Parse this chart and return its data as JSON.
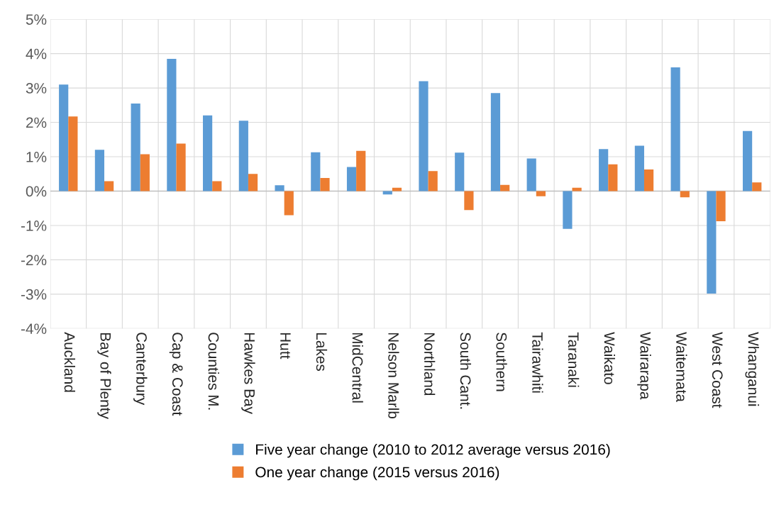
{
  "chart_data": {
    "type": "bar",
    "categories": [
      "Auckland",
      "Bay of Plenty",
      "Canterbury",
      "Cap & Coast",
      "Counties M.",
      "Hawkes Bay",
      "Hutt",
      "Lakes",
      "MidCentral",
      "Nelson Marlb",
      "Northland",
      "South Cant.",
      "Southern",
      "Tairawhiti",
      "Taranaki",
      "Waikato",
      "Wairarapa",
      "Waitemata",
      "West Coast",
      "Whanganui"
    ],
    "series": [
      {
        "name": "Five year change (2010 to 2012 average versus 2016)",
        "color": "#5b9bd5",
        "values": [
          3.1,
          1.2,
          2.55,
          3.85,
          2.2,
          2.05,
          0.17,
          1.13,
          0.7,
          -0.1,
          3.2,
          1.12,
          2.85,
          0.95,
          -1.1,
          1.22,
          1.32,
          3.6,
          -2.98,
          1.75
        ]
      },
      {
        "name": "One year change (2015 versus 2016)",
        "color": "#ed7d31",
        "values": [
          2.17,
          0.29,
          1.07,
          1.38,
          0.29,
          0.5,
          -0.7,
          0.38,
          1.17,
          0.1,
          0.58,
          -0.55,
          0.18,
          -0.15,
          0.1,
          0.78,
          0.63,
          -0.18,
          -0.88,
          0.25
        ]
      }
    ],
    "ylim": [
      -4,
      5
    ],
    "yticks": [
      {
        "value": -4,
        "label": "-4%"
      },
      {
        "value": -3,
        "label": "-3%"
      },
      {
        "value": -2,
        "label": "-2%"
      },
      {
        "value": -1,
        "label": "-1%"
      },
      {
        "value": 0,
        "label": "0%"
      },
      {
        "value": 1,
        "label": "1%"
      },
      {
        "value": 2,
        "label": "2%"
      },
      {
        "value": 3,
        "label": "3%"
      },
      {
        "value": 4,
        "label": "4%"
      },
      {
        "value": 5,
        "label": "5%"
      }
    ],
    "grid": true,
    "legend": "bottom"
  }
}
